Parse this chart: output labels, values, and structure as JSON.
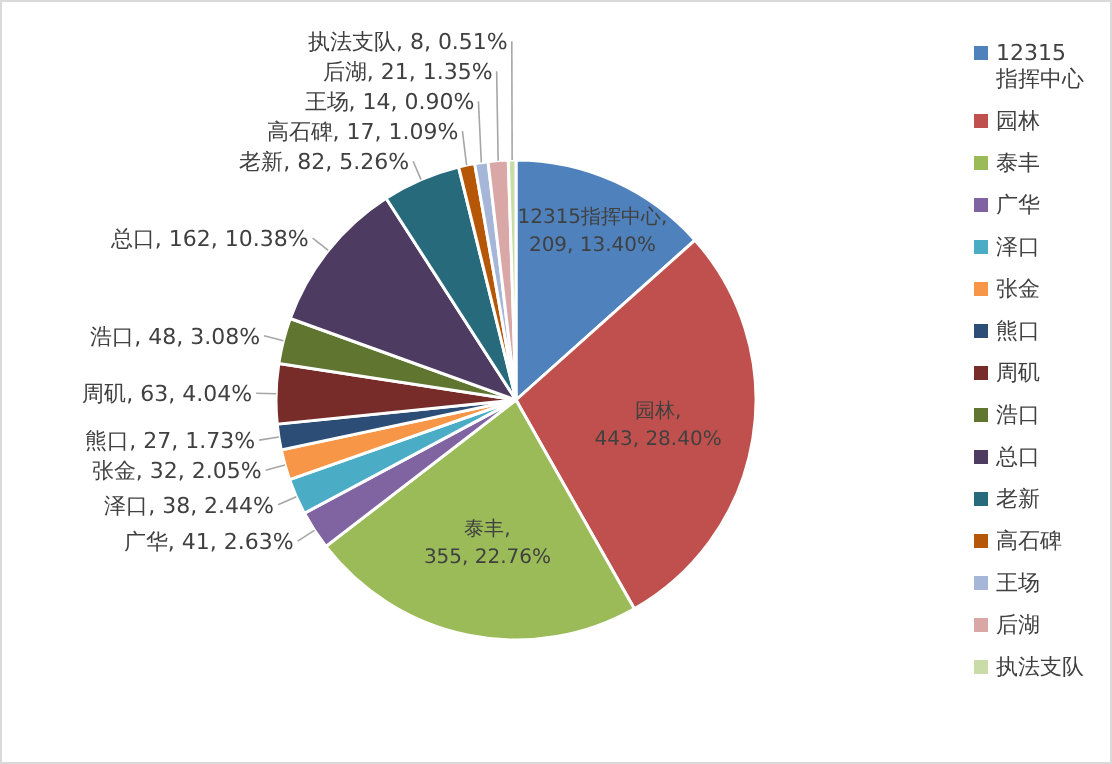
{
  "chart_data": {
    "type": "pie",
    "legend": "right",
    "categories": [
      "12315指挥中心",
      "园林",
      "泰丰",
      "广华",
      "泽口",
      "张金",
      "熊口",
      "周矶",
      "浩口",
      "总口",
      "老新",
      "高石碑",
      "王场",
      "后湖",
      "执法支队"
    ],
    "values": [
      209,
      443,
      355,
      41,
      38,
      32,
      27,
      63,
      48,
      162,
      82,
      17,
      14,
      21,
      8
    ],
    "colors": [
      "#4f81bd",
      "#c0504d",
      "#9bbb59",
      "#8064a2",
      "#4bacc6",
      "#f79646",
      "#2c4d75",
      "#772c2a",
      "#5f7530",
      "#4d3b62",
      "#276a7c",
      "#b65708",
      "#a5b6d8",
      "#d9a7a6",
      "#c9dba6"
    ],
    "value_labels": [
      "12315指挥中心, 209, 13.40%",
      "园林, 443, 28.40%",
      "泰丰, 355, 22.76%",
      "广华, 41, 2.63%",
      "泽口, 38, 2.44%",
      "张金, 32, 2.05%",
      "熊口, 27, 1.73%",
      "周矶, 63, 4.04%",
      "浩口, 48, 3.08%",
      "总口, 162, 10.38%",
      "老新, 82, 5.26%",
      "高石碑, 17, 1.09%",
      "王场, 14, 0.90%",
      "后湖, 21, 1.35%",
      "执法支队, 8, 0.51%"
    ]
  }
}
